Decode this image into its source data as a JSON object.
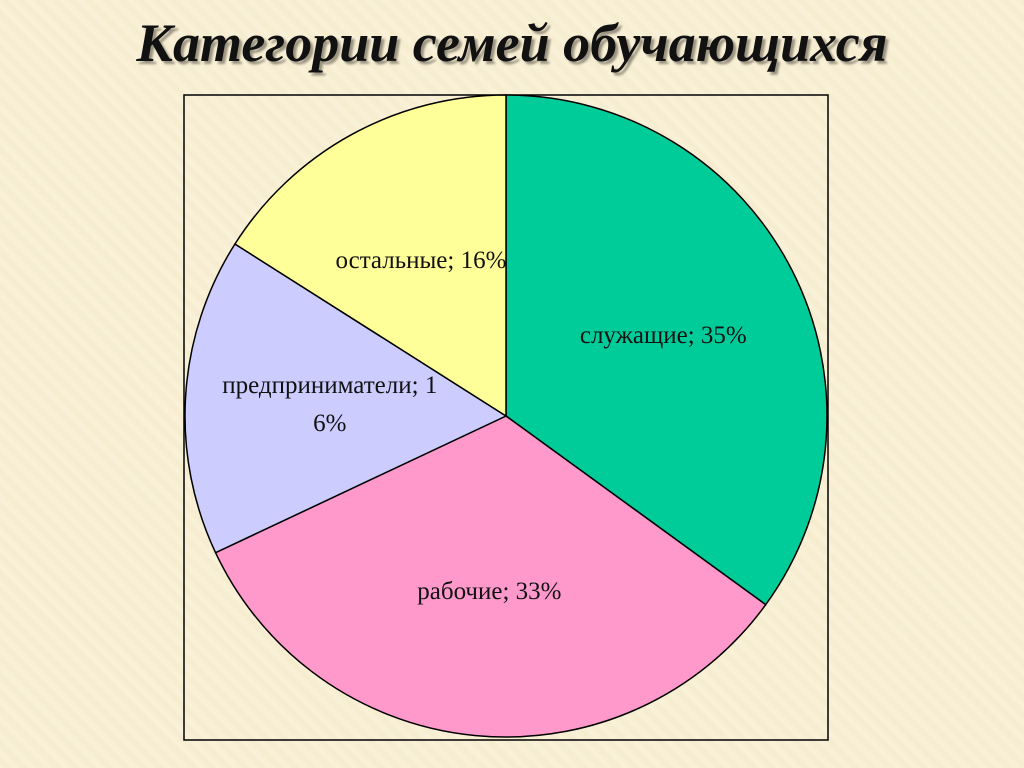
{
  "chart_data": {
    "type": "pie",
    "title": "Категории семей обучающихся",
    "values": [
      35,
      33,
      16,
      16
    ],
    "value_labels": [
      "служащие; 35%",
      "рабочие; 33%",
      "предприниматели; 16%",
      "остальные; 16%"
    ],
    "colors": [
      "#00cc99",
      "#ff99cc",
      "#ccccff",
      "#ffff99"
    ]
  }
}
